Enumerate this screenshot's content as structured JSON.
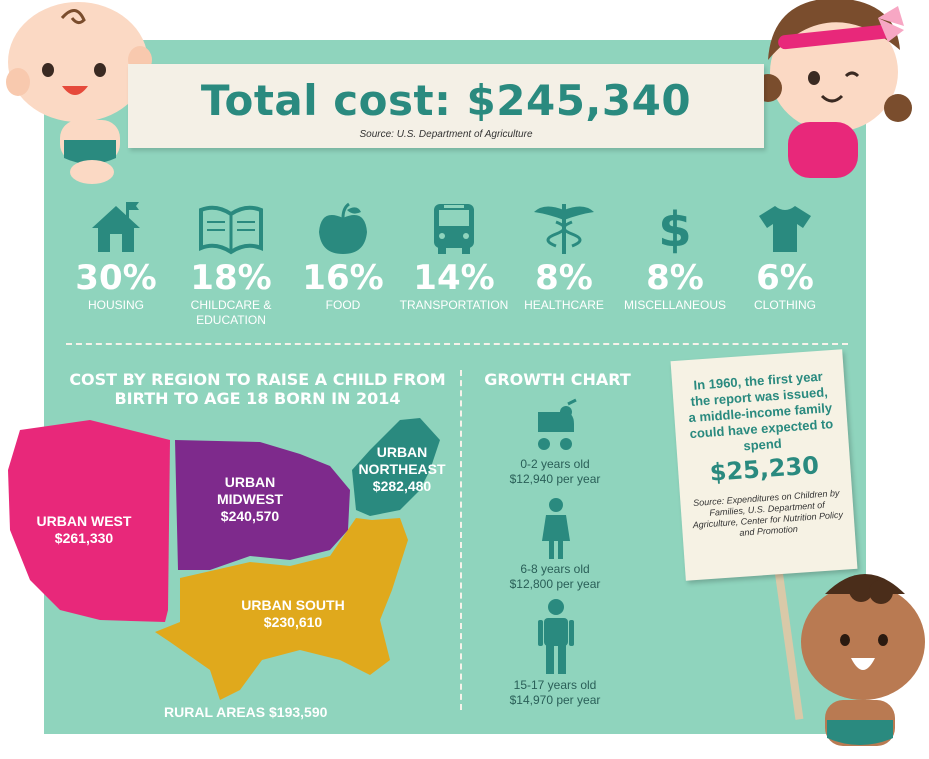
{
  "header": {
    "title": "Total cost: $245,340",
    "source": "Source: U.S. Department of Agriculture"
  },
  "categories": [
    {
      "icon": "house-icon",
      "percent": "30%",
      "label": "HOUSING"
    },
    {
      "icon": "book-icon",
      "percent": "18%",
      "label": "CHILDCARE & EDUCATION"
    },
    {
      "icon": "apple-icon",
      "percent": "16%",
      "label": "FOOD"
    },
    {
      "icon": "bus-icon",
      "percent": "14%",
      "label": "TRANSPORTATION"
    },
    {
      "icon": "caduceus-icon",
      "percent": "8%",
      "label": "HEALTHCARE"
    },
    {
      "icon": "dollar-icon",
      "percent": "8%",
      "label": "MISCELLANEOUS"
    },
    {
      "icon": "shirt-icon",
      "percent": "6%",
      "label": "CLOTHING"
    }
  ],
  "regions": {
    "heading": "COST BY REGION TO RAISE A CHILD FROM BIRTH TO AGE 18 BORN IN 2014",
    "west": {
      "name": "URBAN WEST",
      "value": "$261,330"
    },
    "midwest": {
      "name": "URBAN MIDWEST",
      "value": "$240,570"
    },
    "northeast": {
      "name": "URBAN NORTHEAST",
      "value": "$282,480"
    },
    "south": {
      "name": "URBAN SOUTH",
      "value": "$230,610"
    },
    "rural": "RURAL AREAS $193,590"
  },
  "growth": {
    "heading": "GROWTH CHART",
    "items": [
      {
        "age": "0-2 years old",
        "cost": "$12,940 per year"
      },
      {
        "age": "6-8 years old",
        "cost": "$12,800 per year"
      },
      {
        "age": "15-17 years old",
        "cost": "$14,970 per year"
      }
    ]
  },
  "sign": {
    "text": "In 1960, the first year the report was issued, a middle-income family could have expected to spend",
    "amount": "$25,230",
    "source": "Source: Expenditures on Children by Families, U.S. Department of Agriculture, Center for Nutrition Policy and Promotion"
  },
  "colors": {
    "background": "#8fd4bd",
    "teal": "#2a8a7f",
    "west": "#e8287a",
    "midwest": "#7e2a8c",
    "northeast": "#2a8a7f",
    "south": "#e0a91c"
  }
}
